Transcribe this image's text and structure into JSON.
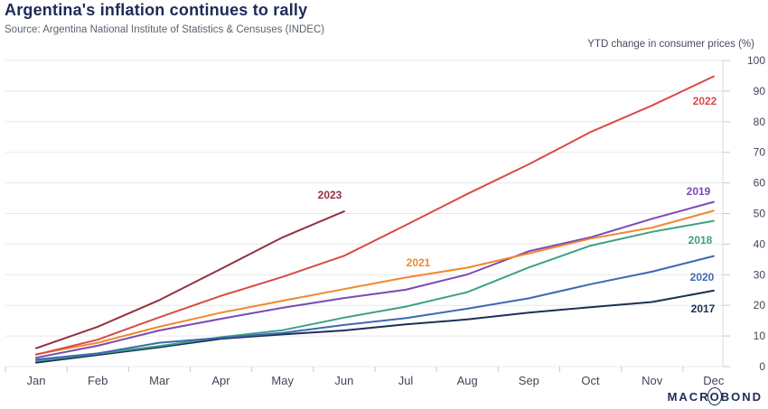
{
  "header": {
    "title": "Argentina's inflation continues to rally",
    "source": "Source: Argentina National Institute of Statistics & Censuses (INDEC)"
  },
  "chart_data": {
    "type": "line",
    "title": "Argentina's inflation continues to rally",
    "y_axis_label": "YTD change in consumer prices (%)",
    "x_categories": [
      "Jan",
      "Feb",
      "Mar",
      "Apr",
      "May",
      "Jun",
      "Jul",
      "Aug",
      "Sep",
      "Oct",
      "Nov",
      "Dec"
    ],
    "ylim": [
      0,
      100
    ],
    "y_ticks": [
      0,
      10,
      20,
      30,
      40,
      50,
      60,
      70,
      80,
      90,
      100
    ],
    "grid": "horizontal",
    "legend": "inline-line-labels",
    "series": [
      {
        "name": "2017",
        "color": "#1d2f54",
        "values": [
          1.3,
          3.8,
          6.3,
          9.1,
          10.5,
          11.8,
          13.8,
          15.4,
          17.6,
          19.4,
          21.1,
          24.8
        ]
      },
      {
        "name": "2018",
        "color": "#3da183",
        "values": [
          1.8,
          4.2,
          6.7,
          9.6,
          11.9,
          16.0,
          19.6,
          24.3,
          32.4,
          39.5,
          44.0,
          47.6
        ]
      },
      {
        "name": "2019",
        "color": "#7b48b5",
        "values": [
          2.9,
          6.8,
          11.8,
          15.6,
          19.2,
          22.4,
          25.1,
          30.1,
          37.7,
          42.2,
          48.3,
          53.8
        ]
      },
      {
        "name": "2020",
        "color": "#3d69b1",
        "values": [
          2.3,
          4.3,
          7.8,
          9.4,
          11.0,
          13.6,
          15.8,
          18.9,
          22.3,
          26.9,
          31.0,
          36.1
        ]
      },
      {
        "name": "2021",
        "color": "#f1882e",
        "values": [
          4.0,
          7.8,
          13.0,
          17.6,
          21.5,
          25.3,
          29.1,
          32.3,
          37.0,
          41.8,
          45.4,
          50.9
        ]
      },
      {
        "name": "2022",
        "color": "#d94a48",
        "values": [
          3.9,
          8.8,
          16.1,
          23.1,
          29.3,
          36.2,
          46.2,
          56.4,
          66.1,
          76.6,
          85.3,
          94.8
        ]
      },
      {
        "name": "2023",
        "color": "#943140",
        "values": [
          6.0,
          13.0,
          21.7,
          31.9,
          42.2,
          50.7
        ]
      }
    ]
  },
  "branding": {
    "logo_pre": "MACR",
    "logo_o": "O",
    "logo_post": "BOND"
  }
}
